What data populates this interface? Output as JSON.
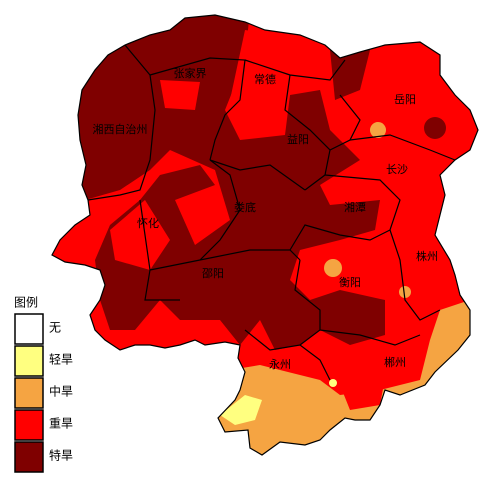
{
  "map": {
    "labels": [
      "张家界",
      "常德",
      "岳阳",
      "湘西自治州",
      "益阳",
      "长沙",
      "怀化",
      "娄底",
      "湘潭",
      "株州",
      "邵阳",
      "衡阳",
      "永州",
      "郴州"
    ]
  },
  "legend": {
    "title": "图例",
    "items": [
      {
        "label": "无",
        "color": "#ffffff"
      },
      {
        "label": "轻旱",
        "color": "#ffff80"
      },
      {
        "label": "中旱",
        "color": "#f5a442"
      },
      {
        "label": "重旱",
        "color": "#ff0000"
      },
      {
        "label": "特旱",
        "color": "#7f0000"
      }
    ]
  }
}
